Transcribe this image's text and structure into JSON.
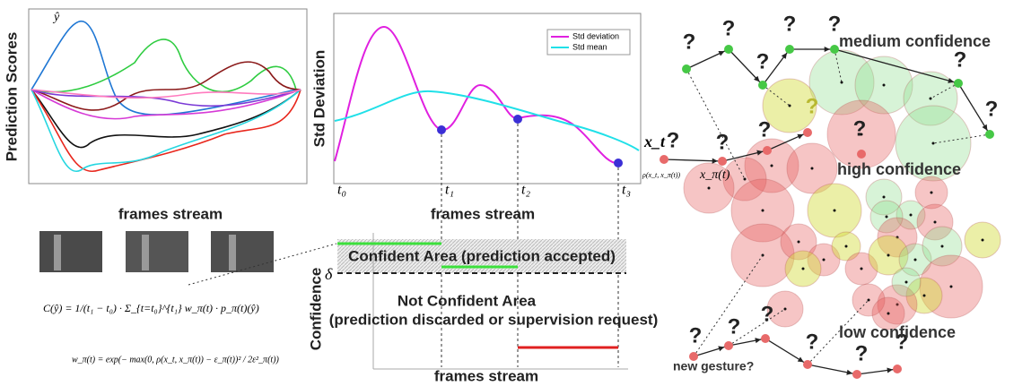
{
  "panel_scores": {
    "y_label": "Prediction Scores",
    "y_hat": "ŷ",
    "x_label": "frames stream",
    "formula_confidence": "C(ŷ) = 1/(t₁ − t₀) · Σ_{t=t₀}^{t₁} w_π(t) · p_π(t)(ŷ)",
    "formula_weight": "w_π(t) = exp(− max(0, ρ(x_t, x_π(t)) − ε_π(t))² / 2ε²_π(t))"
  },
  "panel_std": {
    "y_label": "Std Deviation",
    "x_label": "frames stream",
    "legend": [
      "Std deviation",
      "Std mean"
    ],
    "t_labels": [
      "t₀",
      "t₁",
      "t₂",
      "t₃"
    ]
  },
  "panel_confidence": {
    "y_label": "Confidence",
    "delta": "δ",
    "x_label": "frames stream",
    "confident_area": "Confident Area (prediction accepted)",
    "not_confident_title": "Not Confident Area",
    "not_confident_note": "(prediction discarded or supervision request)"
  },
  "panel_gestures": {
    "medium": "medium confidence",
    "high": "high confidence",
    "low": "low confidence",
    "new_gesture": "new gesture?",
    "x_t": "x_t",
    "x_pi": "x_π(t)",
    "rho": "ρ(x_t, x_π(t))",
    "nodes": [
      "?",
      "?",
      "?",
      "?",
      "?",
      "?",
      "?",
      "?",
      "?",
      "?",
      "?",
      "?",
      "?",
      "?",
      "?",
      "?",
      "?",
      "?"
    ]
  }
}
